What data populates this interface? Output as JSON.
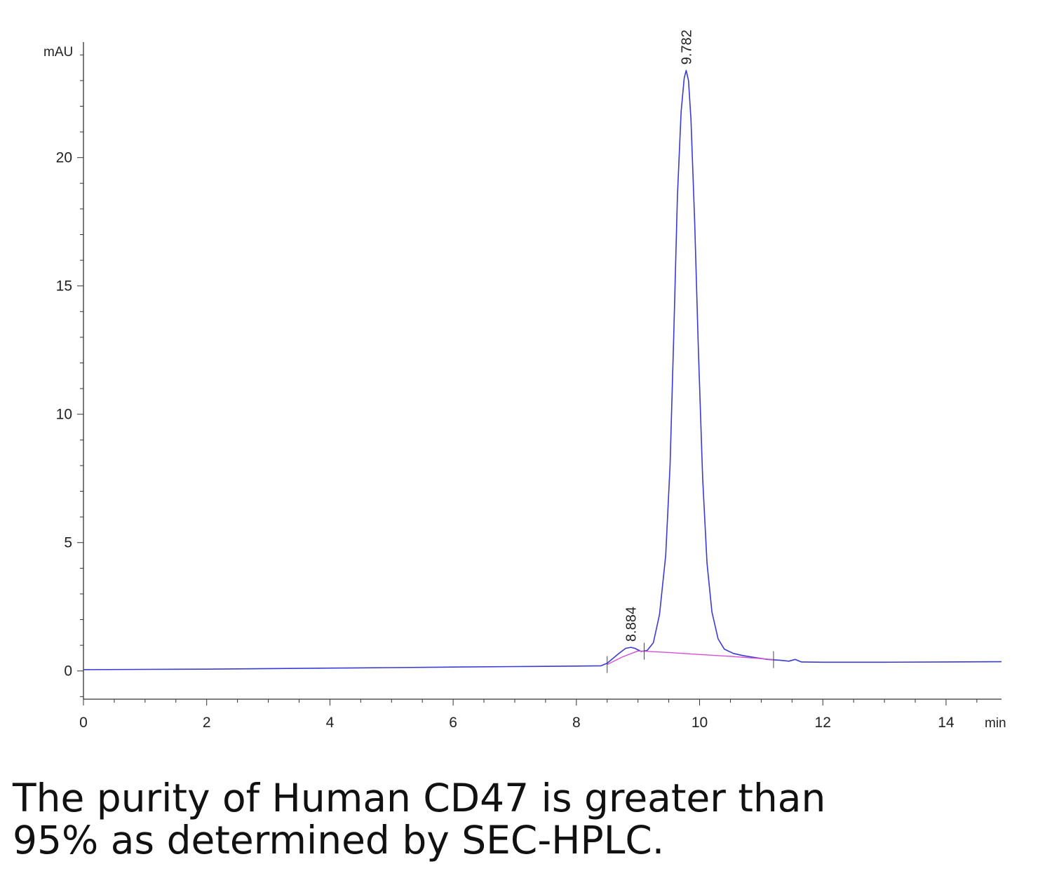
{
  "chart_data": {
    "type": "line",
    "title": "",
    "xlabel": "min",
    "ylabel": "mAU",
    "xlim": [
      0,
      14.9
    ],
    "ylim": [
      -1.1,
      24.5
    ],
    "grid": false,
    "x_ticks": [
      0,
      2,
      4,
      6,
      8,
      10,
      12,
      14
    ],
    "y_ticks": [
      0,
      5,
      10,
      15,
      20
    ],
    "series": [
      {
        "color": "#3a3ad6",
        "points": [
          [
            0,
            0.05
          ],
          [
            1.0,
            0.06
          ],
          [
            2.0,
            0.07
          ],
          [
            3.0,
            0.09
          ],
          [
            4.0,
            0.11
          ],
          [
            5.0,
            0.13
          ],
          [
            6.0,
            0.15
          ],
          [
            7.0,
            0.17
          ],
          [
            8.0,
            0.19
          ],
          [
            8.4,
            0.2
          ],
          [
            8.5,
            0.3
          ],
          [
            8.6,
            0.5
          ],
          [
            8.7,
            0.7
          ],
          [
            8.8,
            0.88
          ],
          [
            8.884,
            0.92
          ],
          [
            8.95,
            0.88
          ],
          [
            9.05,
            0.76
          ],
          [
            9.15,
            0.8
          ],
          [
            9.25,
            1.1
          ],
          [
            9.35,
            2.2
          ],
          [
            9.45,
            4.5
          ],
          [
            9.52,
            8.0
          ],
          [
            9.58,
            13.0
          ],
          [
            9.64,
            18.5
          ],
          [
            9.7,
            21.8
          ],
          [
            9.75,
            23.1
          ],
          [
            9.782,
            23.4
          ],
          [
            9.82,
            23.0
          ],
          [
            9.86,
            21.5
          ],
          [
            9.92,
            17.5
          ],
          [
            9.98,
            12.5
          ],
          [
            10.05,
            7.5
          ],
          [
            10.12,
            4.2
          ],
          [
            10.2,
            2.3
          ],
          [
            10.3,
            1.25
          ],
          [
            10.4,
            0.85
          ],
          [
            10.55,
            0.68
          ],
          [
            10.7,
            0.6
          ],
          [
            10.9,
            0.52
          ],
          [
            11.1,
            0.45
          ],
          [
            11.3,
            0.42
          ],
          [
            11.45,
            0.38
          ],
          [
            11.55,
            0.45
          ],
          [
            11.65,
            0.35
          ],
          [
            12.0,
            0.34
          ],
          [
            13.0,
            0.34
          ],
          [
            14.0,
            0.35
          ],
          [
            14.9,
            0.36
          ]
        ]
      },
      {
        "color": "#d64fd6",
        "points": [
          [
            8.5,
            0.25
          ],
          [
            8.75,
            0.55
          ],
          [
            9.0,
            0.78
          ],
          [
            9.5,
            0.72
          ],
          [
            10.0,
            0.64
          ],
          [
            10.5,
            0.57
          ],
          [
            11.0,
            0.48
          ],
          [
            11.2,
            0.44
          ]
        ]
      }
    ],
    "peaks": [
      {
        "x": 8.884,
        "label": "8.884",
        "y": 0.92
      },
      {
        "x": 9.782,
        "label": "9.782",
        "y": 23.4
      }
    ],
    "integration_marks": [
      8.5,
      9.1,
      11.2
    ]
  },
  "caption": {
    "line1": "The purity of Human CD47 is greater than",
    "line2": "95% as determined by SEC-HPLC."
  }
}
